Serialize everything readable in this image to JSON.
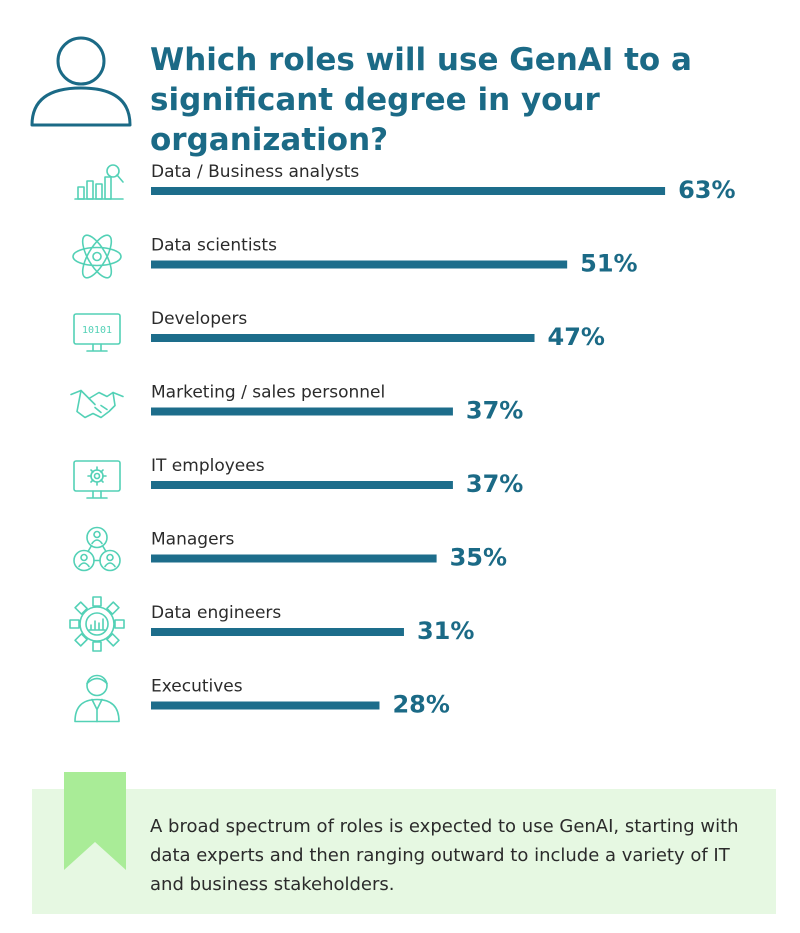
{
  "header": {
    "icon": "user-icon",
    "title": "Which roles will use GenAI to a significant degree in your organization?"
  },
  "colors": {
    "bar": "#1d6d8b",
    "value": "#1b6a86",
    "icon": "#53d1b6",
    "note_bg": "#e6f8e2",
    "ribbon": "#a9ec97"
  },
  "chart_data": {
    "type": "bar",
    "orientation": "horizontal",
    "title": "Which roles will use GenAI to a significant degree in your organization?",
    "categories": [
      "Data / Business analysts",
      "Data scientists",
      "Developers",
      "Marketing / sales personnel",
      "IT employees",
      "Managers",
      "Data engineers",
      "Executives"
    ],
    "values": [
      63,
      51,
      47,
      37,
      37,
      35,
      31,
      28
    ],
    "value_labels": [
      "63%",
      "51%",
      "47%",
      "37%",
      "37%",
      "35%",
      "31%",
      "28%"
    ],
    "icons": [
      "analytics-chart-icon",
      "atom-icon",
      "binary-monitor-icon",
      "handshake-icon",
      "gear-monitor-icon",
      "team-network-icon",
      "gear-chart-icon",
      "executive-person-icon"
    ],
    "icon_texts": [
      "",
      "",
      "10101",
      "",
      "",
      "",
      "",
      ""
    ],
    "unit": "%",
    "xlim": [
      0,
      100
    ],
    "xlabel": "",
    "ylabel": "",
    "grid": false,
    "legend": "none"
  },
  "note": {
    "icon": "bookmark-ribbon-icon",
    "text": "A broad spectrum of roles is expected to use GenAI, starting with data experts and then ranging outward to include a variety of IT and business stakeholders."
  }
}
